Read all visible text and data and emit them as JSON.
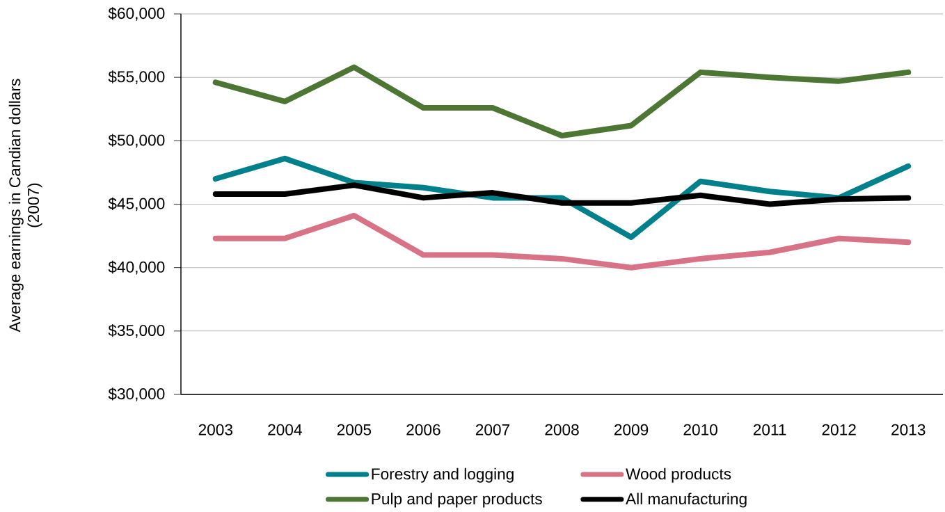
{
  "chart_data": {
    "type": "line",
    "ylabel": "Average earnings in Candian dollars (2007)",
    "categories": [
      "2003",
      "2004",
      "2005",
      "2006",
      "2007",
      "2008",
      "2009",
      "2010",
      "2011",
      "2012",
      "2013"
    ],
    "series": [
      {
        "name": "Forestry and logging",
        "color": "#00808a",
        "values": [
          47000,
          48600,
          46700,
          46300,
          45500,
          45500,
          42400,
          46800,
          46000,
          45500,
          48000
        ]
      },
      {
        "name": "Wood products",
        "color": "#d87387",
        "values": [
          42300,
          42300,
          44100,
          41000,
          41000,
          40700,
          40000,
          40700,
          41200,
          42300,
          42000
        ]
      },
      {
        "name": "Pulp and paper products",
        "color": "#4d7533",
        "values": [
          54600,
          53100,
          55800,
          52600,
          52600,
          50400,
          51200,
          55400,
          55000,
          54700,
          55400
        ]
      },
      {
        "name": "All manufacturing",
        "color": "#000000",
        "values": [
          45800,
          45800,
          46500,
          45500,
          45900,
          45100,
          45100,
          45700,
          45000,
          45400,
          45500
        ]
      }
    ],
    "ylim": [
      30000,
      60000
    ],
    "yticks": [
      {
        "value": 30000,
        "label": "$30,000"
      },
      {
        "value": 35000,
        "label": "$35,000"
      },
      {
        "value": 40000,
        "label": "$40,000"
      },
      {
        "value": 45000,
        "label": "$45,000"
      },
      {
        "value": 50000,
        "label": "$50,000"
      },
      {
        "value": 55000,
        "label": "$55,000"
      },
      {
        "value": 60000,
        "label": "$60,000"
      }
    ],
    "grid": "y",
    "legend": "bottom",
    "line_style": "solid"
  }
}
